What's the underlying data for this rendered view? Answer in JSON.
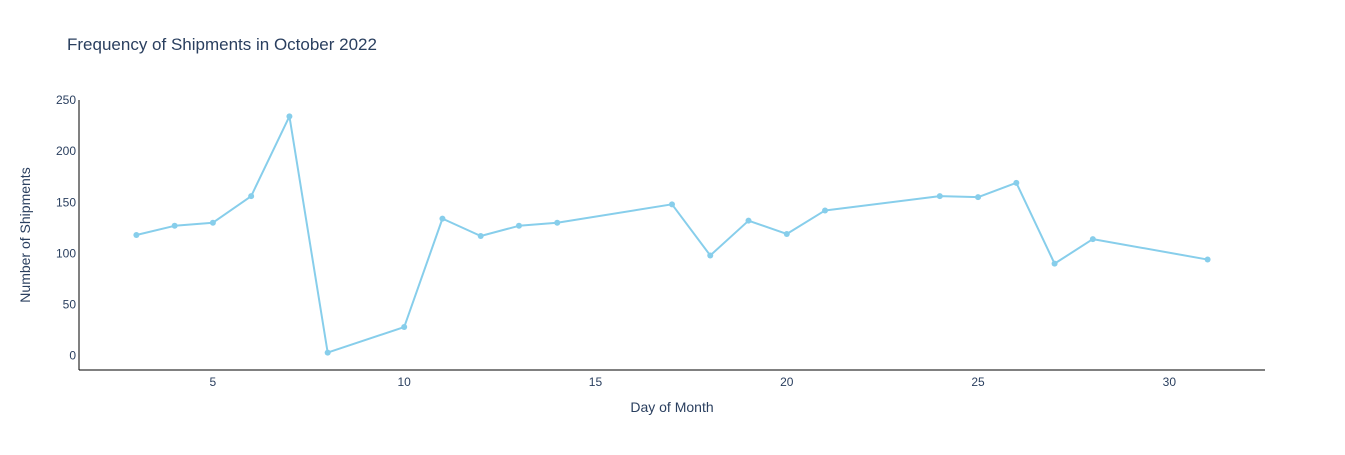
{
  "chart_data": {
    "type": "line",
    "title": "Frequency of Shipments in October 2022",
    "xlabel": "Day of Month",
    "ylabel": "Number of Shipments",
    "xlim": [
      1.5,
      32.5
    ],
    "ylim": [
      -14,
      250
    ],
    "xticks": [
      5,
      10,
      15,
      20,
      25,
      30
    ],
    "yticks": [
      0,
      50,
      100,
      150,
      200,
      250
    ],
    "grid": false,
    "legend": "none",
    "color": "#87ceeb",
    "series": [
      {
        "x": [
          3,
          4,
          5,
          6,
          7,
          8,
          10,
          11,
          12,
          13,
          14,
          17,
          18,
          19,
          20,
          21,
          24,
          25,
          26,
          27,
          28,
          31
        ],
        "values": [
          118,
          127,
          130,
          156,
          234,
          3,
          28,
          134,
          117,
          127,
          130,
          148,
          98,
          132,
          119,
          142,
          156,
          155,
          169,
          90,
          114,
          94
        ]
      }
    ]
  }
}
